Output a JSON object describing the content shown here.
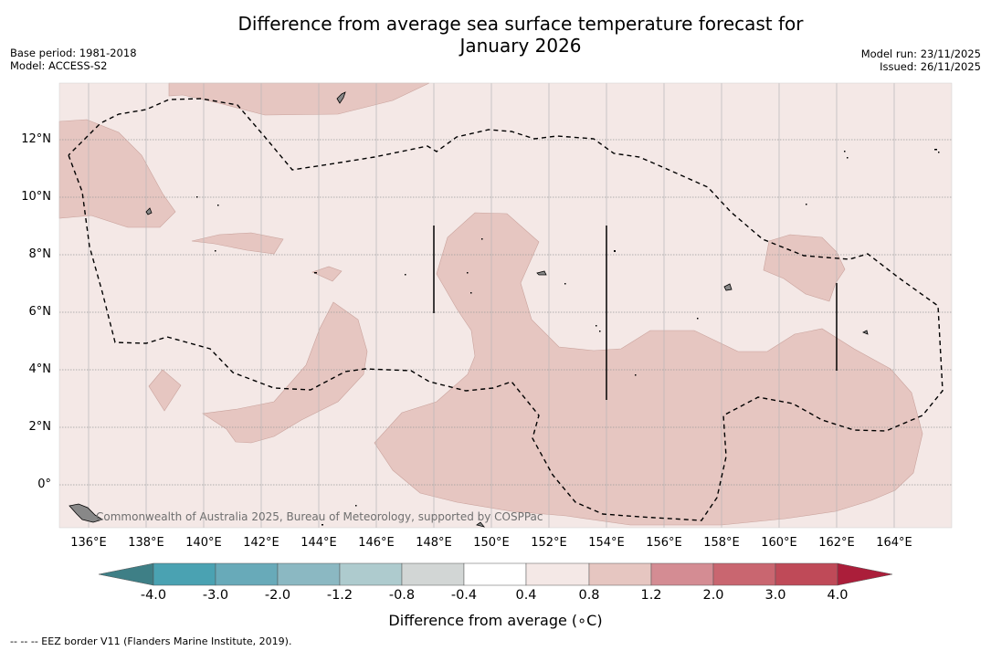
{
  "header": {
    "title_line1": "Difference from average sea surface temperature forecast for",
    "title_line2": "January 2026",
    "base_period": "Base period: 1981-2018",
    "model": "Model: ACCESS-S2",
    "model_run": "Model run: 23/11/2025",
    "issued": "Issued: 26/11/2025"
  },
  "map": {
    "lon_ticks": [
      "136°E",
      "138°E",
      "140°E",
      "142°E",
      "144°E",
      "146°E",
      "148°E",
      "150°E",
      "152°E",
      "154°E",
      "156°E",
      "158°E",
      "160°E",
      "162°E",
      "164°E"
    ],
    "lat_ticks": [
      "12°N",
      "10°N",
      "8°N",
      "6°N",
      "4°N",
      "2°N",
      "0°"
    ],
    "credit": "Commonwealth of Australia 2025, Bureau of Meteorology, supported by COSPPac",
    "background_color": "#f4e8e6",
    "anomaly_color": "#e6c6c1"
  },
  "colorbar": {
    "labels": [
      "-4.0",
      "-3.0",
      "-2.0",
      "-1.2",
      "-0.8",
      "-0.4",
      "0.4",
      "0.8",
      "1.2",
      "2.0",
      "3.0",
      "4.0"
    ],
    "colors": [
      "#3e7f86",
      "#4aa2b2",
      "#68aab9",
      "#8bb8c2",
      "#aecbce",
      "#d2d6d5",
      "#ffffff",
      "#f4e8e6",
      "#e6c6c1",
      "#d48c93",
      "#c96670",
      "#bf4a58",
      "#ab1e3a"
    ],
    "title": "Difference from average (∘C)"
  },
  "footnote": "--  --  -- EEZ border V11 (Flanders Marine Institute, 2019)."
}
